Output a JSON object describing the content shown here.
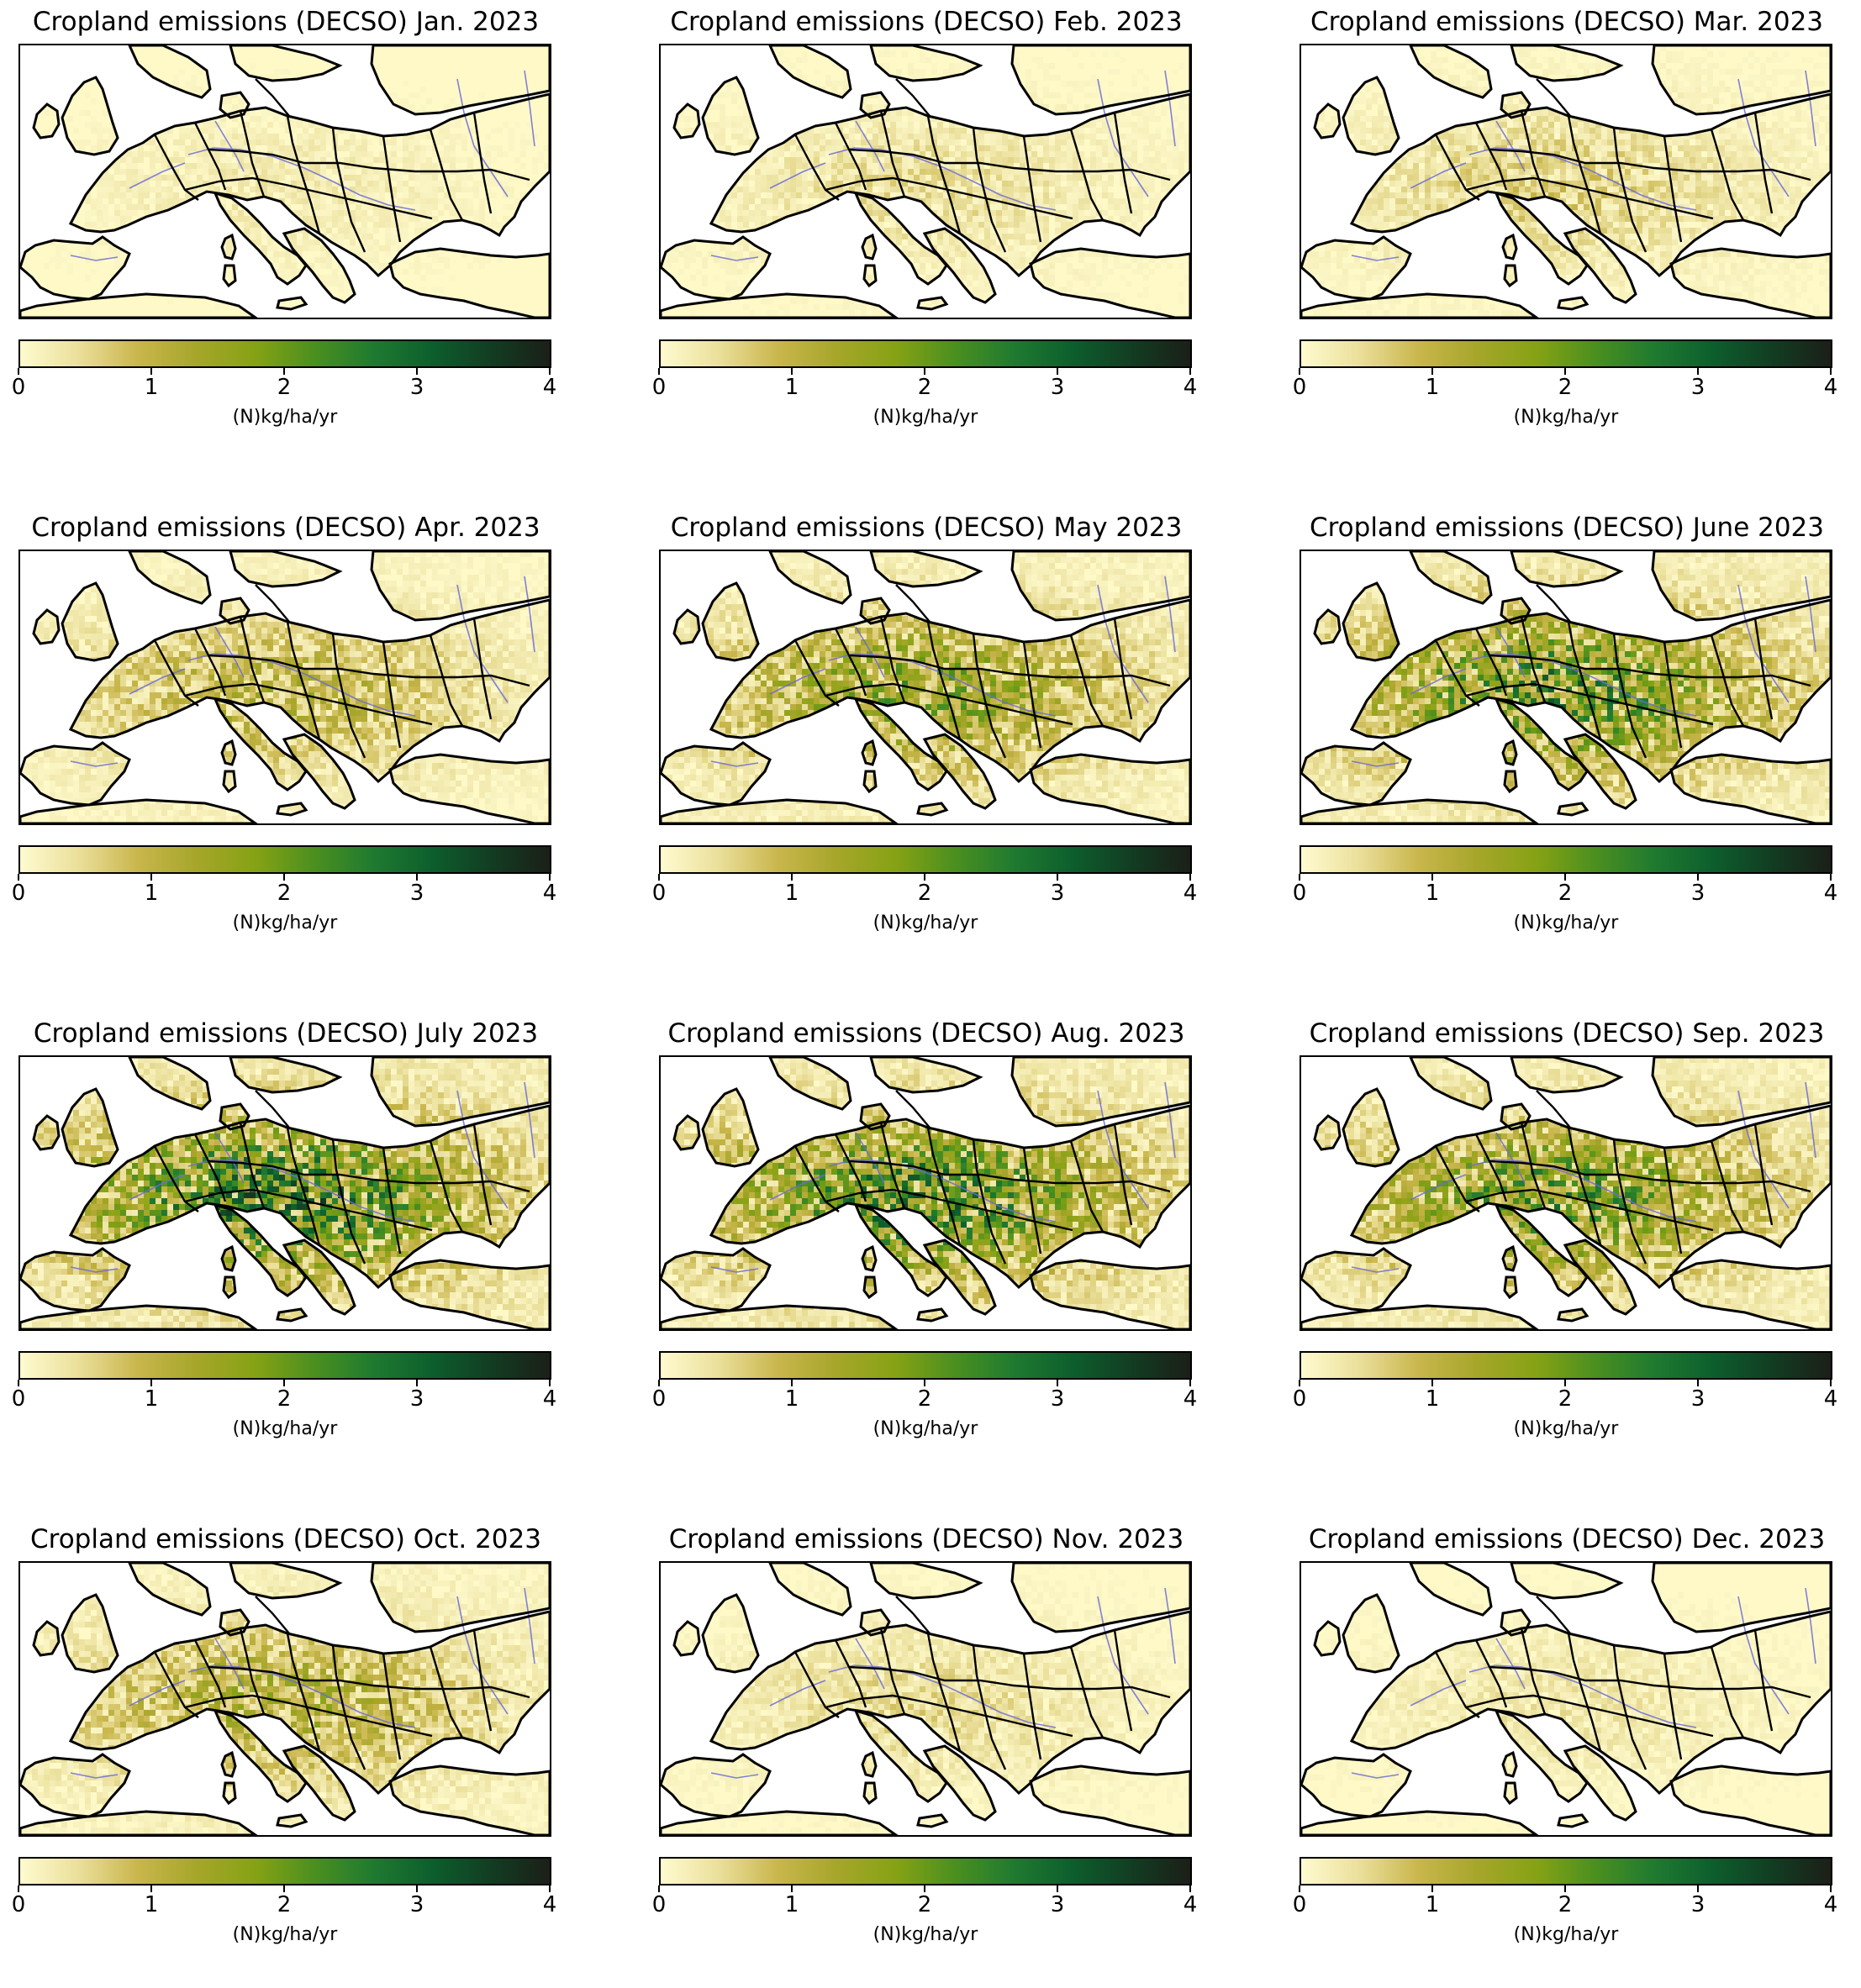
{
  "figure": {
    "colormap": [
      "#fffbd0",
      "#eadf9a",
      "#c9b64c",
      "#a6a62a",
      "#86a214",
      "#4b8f1f",
      "#1f7a30",
      "#0d5e2d",
      "#123d22",
      "#1b1f18"
    ],
    "land_color": "#fff9c8",
    "border_color": "#000000",
    "river_color": "#6b6bd8"
  },
  "chart_data": [
    {
      "type": "heatmap",
      "title": "Cropland emissions (DECSO) Jan. 2023",
      "colorbar_label": "(N)kg/ha/yr",
      "colorbar_range": [
        0,
        4
      ],
      "colorbar_ticks": [
        "0",
        "1",
        "2",
        "3",
        "4"
      ],
      "intensity": 0.18
    },
    {
      "type": "heatmap",
      "title": "Cropland emissions (DECSO) Feb. 2023",
      "colorbar_label": "(N)kg/ha/yr",
      "colorbar_range": [
        0,
        4
      ],
      "colorbar_ticks": [
        "0",
        "1",
        "2",
        "3",
        "4"
      ],
      "intensity": 0.28
    },
    {
      "type": "heatmap",
      "title": "Cropland emissions (DECSO) Mar. 2023",
      "colorbar_label": "(N)kg/ha/yr",
      "colorbar_range": [
        0,
        4
      ],
      "colorbar_ticks": [
        "0",
        "1",
        "2",
        "3",
        "4"
      ],
      "intensity": 0.38
    },
    {
      "type": "heatmap",
      "title": "Cropland emissions (DECSO) Apr. 2023",
      "colorbar_label": "(N)kg/ha/yr",
      "colorbar_range": [
        0,
        4
      ],
      "colorbar_ticks": [
        "0",
        "1",
        "2",
        "3",
        "4"
      ],
      "intensity": 0.62
    },
    {
      "type": "heatmap",
      "title": "Cropland emissions (DECSO) May 2023",
      "colorbar_label": "(N)kg/ha/yr",
      "colorbar_range": [
        0,
        4
      ],
      "colorbar_ticks": [
        "0",
        "1",
        "2",
        "3",
        "4"
      ],
      "intensity": 0.95
    },
    {
      "type": "heatmap",
      "title": "Cropland emissions (DECSO) June 2023",
      "colorbar_label": "(N)kg/ha/yr",
      "colorbar_range": [
        0,
        4
      ],
      "colorbar_ticks": [
        "0",
        "1",
        "2",
        "3",
        "4"
      ],
      "intensity": 1.25
    },
    {
      "type": "heatmap",
      "title": "Cropland emissions (DECSO) July 2023",
      "colorbar_label": "(N)kg/ha/yr",
      "colorbar_range": [
        0,
        4
      ],
      "colorbar_ticks": [
        "0",
        "1",
        "2",
        "3",
        "4"
      ],
      "intensity": 1.45
    },
    {
      "type": "heatmap",
      "title": "Cropland emissions (DECSO) Aug. 2023",
      "colorbar_label": "(N)kg/ha/yr",
      "colorbar_range": [
        0,
        4
      ],
      "colorbar_ticks": [
        "0",
        "1",
        "2",
        "3",
        "4"
      ],
      "intensity": 1.35
    },
    {
      "type": "heatmap",
      "title": "Cropland emissions (DECSO) Sep. 2023",
      "colorbar_label": "(N)kg/ha/yr",
      "colorbar_range": [
        0,
        4
      ],
      "colorbar_ticks": [
        "0",
        "1",
        "2",
        "3",
        "4"
      ],
      "intensity": 1.15
    },
    {
      "type": "heatmap",
      "title": "Cropland emissions (DECSO) Oct. 2023",
      "colorbar_label": "(N)kg/ha/yr",
      "colorbar_range": [
        0,
        4
      ],
      "colorbar_ticks": [
        "0",
        "1",
        "2",
        "3",
        "4"
      ],
      "intensity": 0.72
    },
    {
      "type": "heatmap",
      "title": "Cropland emissions (DECSO) Nov. 2023",
      "colorbar_label": "(N)kg/ha/yr",
      "colorbar_range": [
        0,
        4
      ],
      "colorbar_ticks": [
        "0",
        "1",
        "2",
        "3",
        "4"
      ],
      "intensity": 0.3
    },
    {
      "type": "heatmap",
      "title": "Cropland emissions (DECSO) Dec. 2023",
      "colorbar_label": "(N)kg/ha/yr",
      "colorbar_range": [
        0,
        4
      ],
      "colorbar_ticks": [
        "0",
        "1",
        "2",
        "3",
        "4"
      ],
      "intensity": 0.22
    }
  ]
}
